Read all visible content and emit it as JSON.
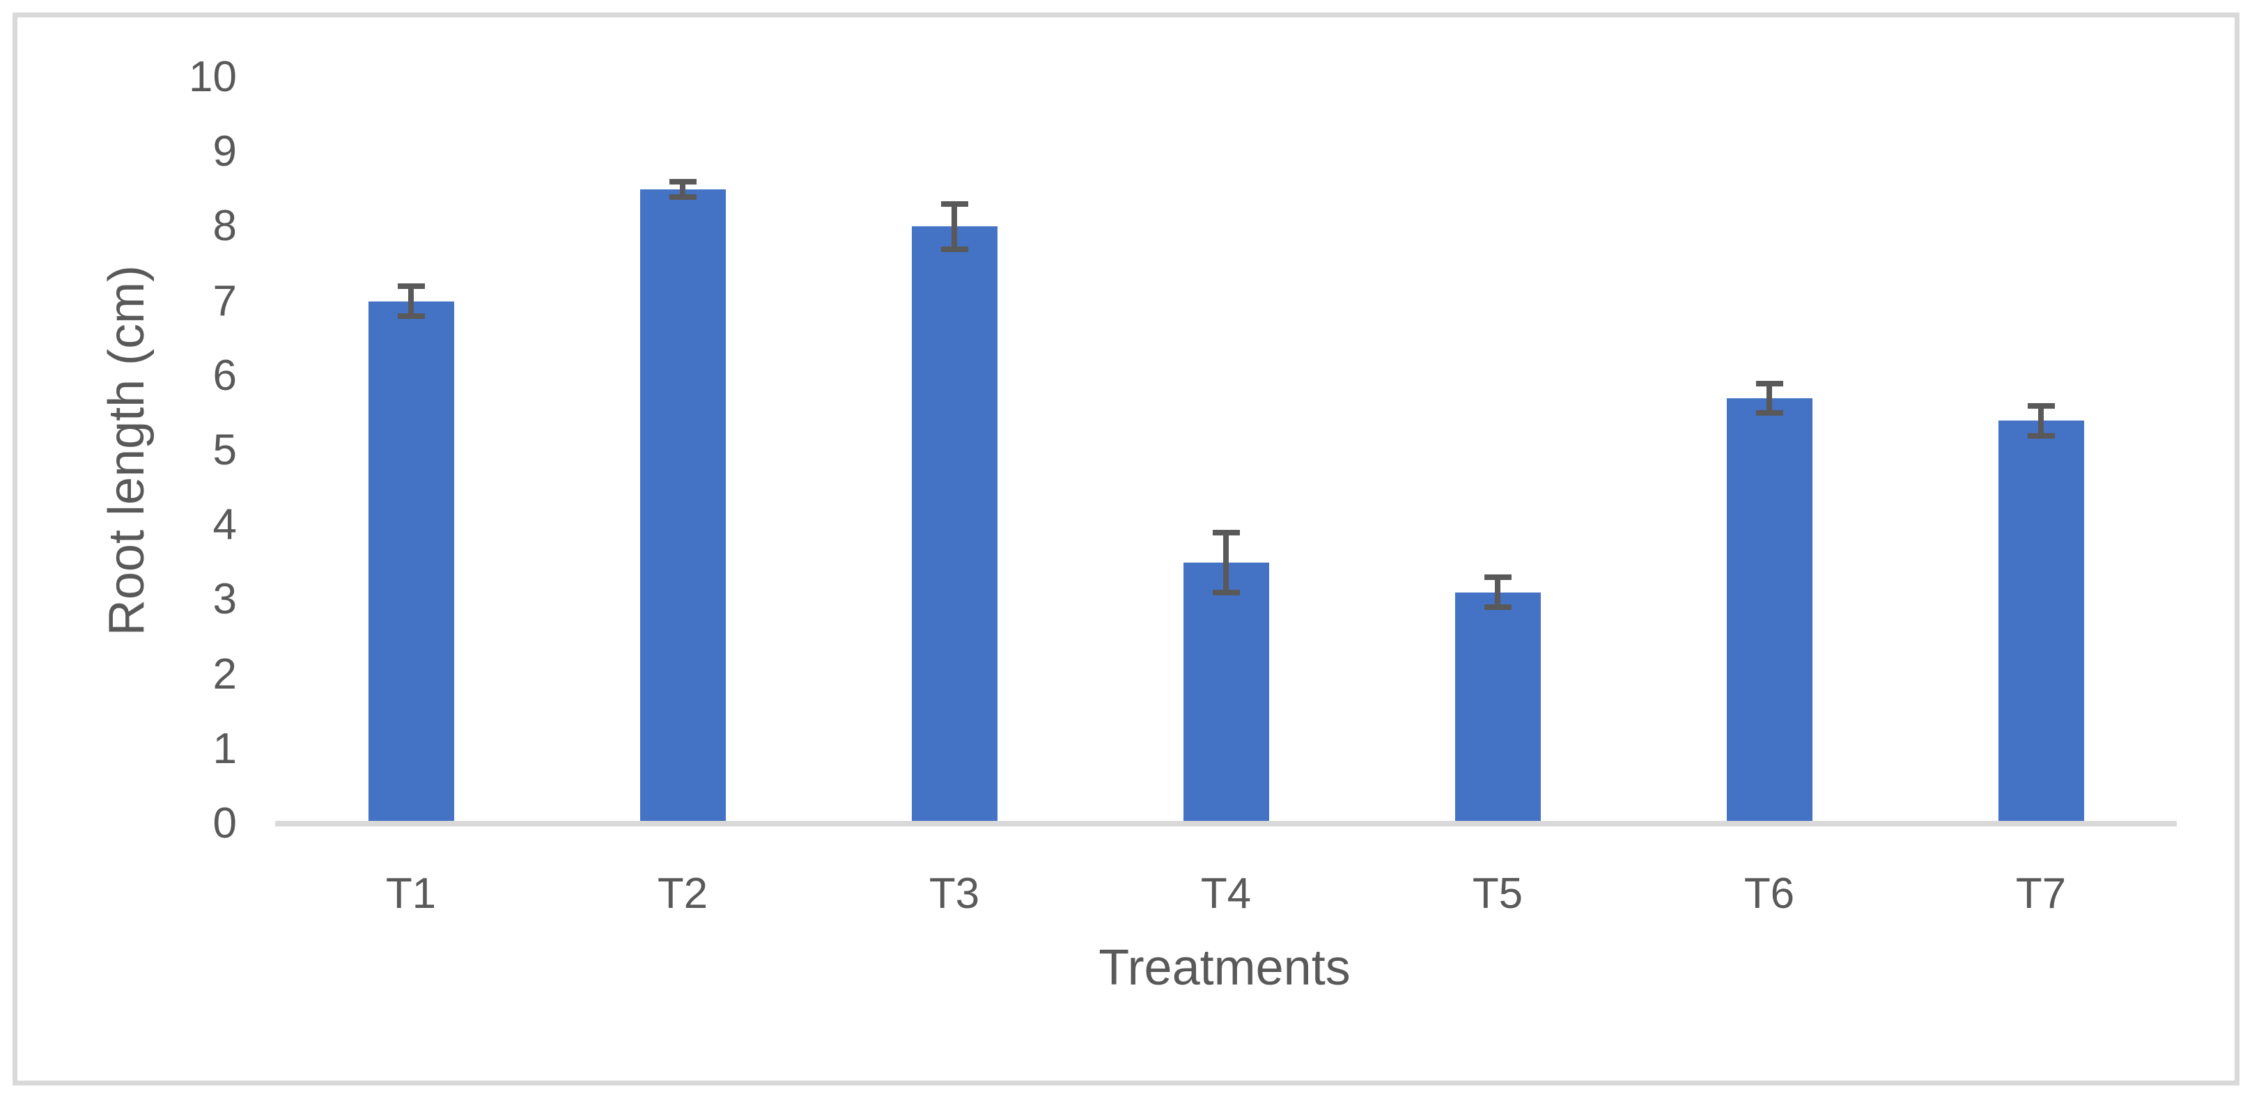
{
  "chart_data": {
    "type": "bar",
    "title": "",
    "categories": [
      "T1",
      "T2",
      "T3",
      "T4",
      "T5",
      "T6",
      "T7"
    ],
    "values": [
      7.0,
      8.5,
      8.0,
      3.5,
      3.1,
      5.7,
      5.4
    ],
    "error_bars": [
      0.2,
      0.1,
      0.3,
      0.4,
      0.2,
      0.2,
      0.2
    ],
    "xlabel": "Treatments",
    "ylabel": "Root length (cm)",
    "yticks": [
      0,
      1,
      2,
      3,
      4,
      5,
      6,
      7,
      8,
      9,
      10
    ],
    "ylim": [
      0,
      10
    ],
    "grid": false,
    "legend": false,
    "bar_color": "#4472C4",
    "error_bar_color": "#595959",
    "axis_line_color": "#D9D9D9",
    "frame_border_color": "#D9D9D9",
    "text_color": "#595959",
    "background": "#FFFFFF"
  }
}
